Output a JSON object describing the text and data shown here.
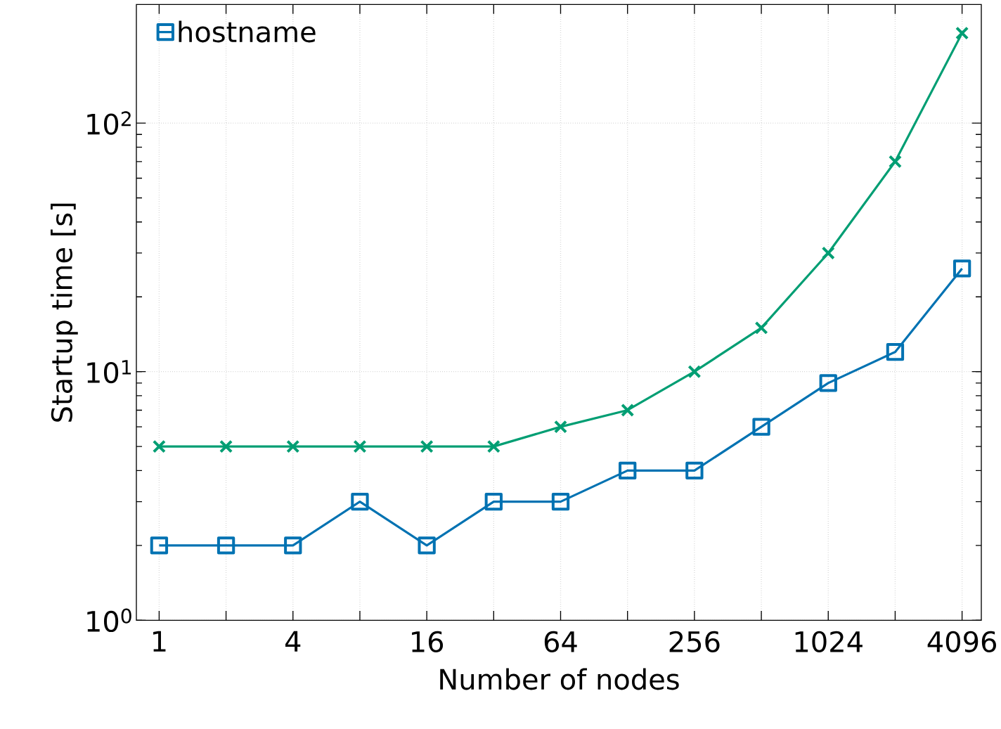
{
  "chart_data": {
    "type": "line",
    "xlabel": "Number of nodes",
    "ylabel": "Startup time [s]",
    "x": [
      1,
      2,
      4,
      8,
      16,
      32,
      64,
      128,
      256,
      512,
      1024,
      2048,
      4096
    ],
    "series": [
      {
        "color": "#009e73",
        "marker": "cross",
        "values": [
          5,
          5,
          5,
          5,
          5,
          5,
          6,
          7,
          10,
          15,
          30,
          70,
          230
        ]
      },
      {
        "name": "hostname",
        "color": "#0072b2",
        "marker": "square",
        "values": [
          2,
          2,
          2,
          3,
          2,
          3,
          3,
          4,
          4,
          6,
          9,
          12,
          26
        ]
      }
    ],
    "log": "xy",
    "xlim": [
      0.79,
      5000
    ],
    "ylim": [
      1,
      300
    ],
    "xticks": [
      1,
      {
        "value": 2,
        "label": null
      },
      4,
      {
        "value": 8,
        "label": null
      },
      16,
      {
        "value": 32,
        "label": null
      },
      64,
      {
        "value": 128,
        "label": null
      },
      256,
      {
        "value": 512,
        "label": null
      },
      1024,
      {
        "value": 2048,
        "label": null
      },
      4096
    ],
    "yticks": [
      {
        "value": 1,
        "label": "10$^{0}$"
      },
      {
        "value": 10,
        "label": "10$^{1}$"
      },
      {
        "value": 100,
        "label": "10$^{2}$"
      }
    ],
    "grid": true,
    "legend": "top left",
    "line_style": "solid"
  }
}
